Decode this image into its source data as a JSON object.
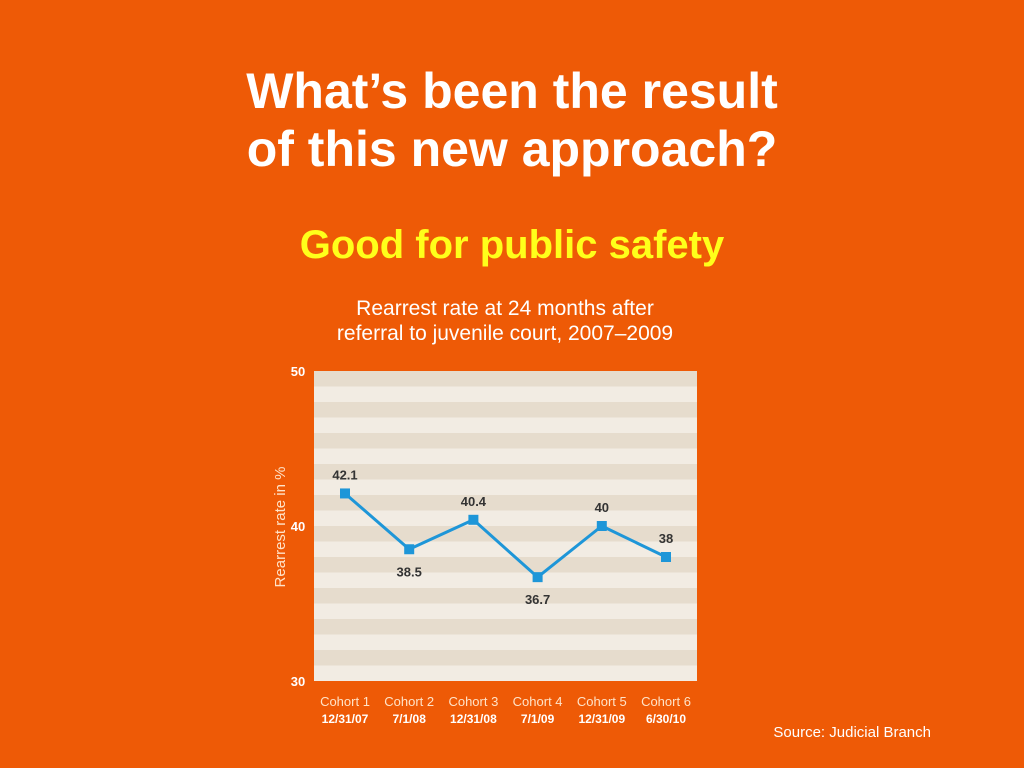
{
  "slide": {
    "title_line1": "What’s been the result",
    "title_line2": "of this new approach?",
    "subtitle": "Good for public safety",
    "source": "Source: Judicial Branch"
  },
  "chart_data": {
    "type": "line",
    "title_line1": "Rearrest rate at 24 months after",
    "title_line2": "referral to juvenile court, 2007–2009",
    "ylabel": "Rearrest rate in %",
    "xlabel": "",
    "ylim": [
      30,
      50
    ],
    "yticks": [
      30,
      40,
      50
    ],
    "categories": [
      {
        "cohort": "Cohort 1",
        "date": "12/31/07"
      },
      {
        "cohort": "Cohort 2",
        "date": "7/1/08"
      },
      {
        "cohort": "Cohort 3",
        "date": "12/31/08"
      },
      {
        "cohort": "Cohort 4",
        "date": "7/1/09"
      },
      {
        "cohort": "Cohort 5",
        "date": "12/31/09"
      },
      {
        "cohort": "Cohort 6",
        "date": "6/30/10"
      }
    ],
    "series": [
      {
        "values": [
          42.1,
          38.5,
          40.4,
          36.7,
          40,
          38
        ],
        "labels": [
          "42.1",
          "38.5",
          "40.4",
          "36.7",
          "40",
          "38"
        ],
        "label_positions": [
          "above",
          "below",
          "above",
          "below",
          "above",
          "above"
        ]
      }
    ],
    "grid": "horizontal bands",
    "colors": {
      "line": "#1E96D8",
      "band_dark": "#E6DCCD",
      "band_light": "#F2ECE3",
      "background": "#EE5A06",
      "cohort_text": "#FFE3C8",
      "title": "#FFFF1A"
    }
  }
}
